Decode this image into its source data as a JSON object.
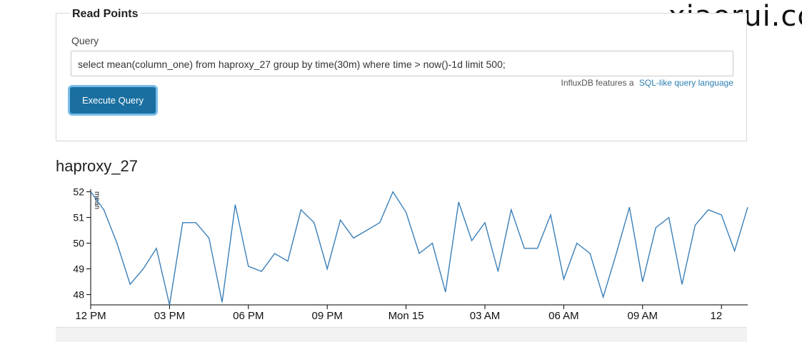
{
  "brand": "xiaorui.cc",
  "read_points": {
    "title": "Read Points",
    "query_label": "Query",
    "query_value": "select mean(column_one) from haproxy_27 group by time(30m) where time > now()-1d limit 500;",
    "help_text": "InfluxDB features a",
    "help_link": "SQL-like query language",
    "execute_label": "Execute Query"
  },
  "series_title": "haproxy_27",
  "chart_data": {
    "type": "line",
    "ylabel": "mean",
    "ylim": [
      47.6,
      52.1
    ],
    "yticks": [
      52,
      51,
      50,
      49,
      48
    ],
    "x_ticks": [
      "12 PM",
      "03 PM",
      "06 PM",
      "09 PM",
      "Mon 15",
      "03 AM",
      "06 AM",
      "09 AM",
      "12"
    ],
    "x_tick_index": [
      0,
      6,
      12,
      18,
      24,
      30,
      36,
      42,
      48
    ],
    "series": [
      {
        "color": "#3a7fb8",
        "values": [
          52.0,
          51.3,
          50.0,
          48.4,
          49.0,
          49.8,
          47.6,
          50.8,
          50.8,
          50.2,
          47.7,
          51.5,
          49.1,
          48.9,
          49.6,
          49.3,
          51.3,
          50.8,
          49.0,
          50.9,
          50.2,
          50.5,
          50.8,
          52.0,
          51.2,
          49.6,
          50.0,
          48.1,
          51.6,
          50.1,
          50.8,
          48.9,
          51.3,
          49.8,
          49.8,
          51.1,
          48.6,
          50.0,
          49.6,
          47.9,
          49.6,
          51.4,
          48.5,
          50.6,
          51.0,
          48.4,
          50.7,
          51.3,
          51.1,
          49.7,
          51.4
        ]
      }
    ]
  }
}
